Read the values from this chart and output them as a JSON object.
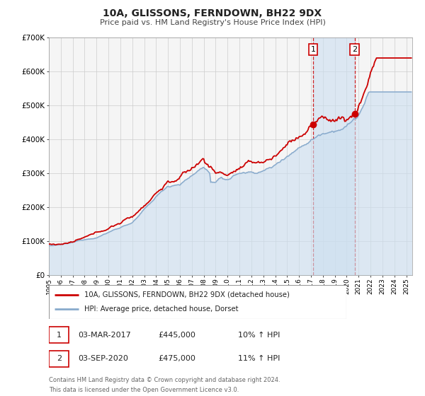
{
  "title": "10A, GLISSONS, FERNDOWN, BH22 9DX",
  "subtitle": "Price paid vs. HM Land Registry's House Price Index (HPI)",
  "ylim": [
    0,
    700000
  ],
  "yticks": [
    0,
    100000,
    200000,
    300000,
    400000,
    500000,
    600000,
    700000
  ],
  "ytick_labels": [
    "£0",
    "£100K",
    "£200K",
    "£300K",
    "£400K",
    "£500K",
    "£600K",
    "£700K"
  ],
  "xlim_start": 1995.0,
  "xlim_end": 2025.5,
  "xtick_years": [
    1995,
    1996,
    1997,
    1998,
    1999,
    2000,
    2001,
    2002,
    2003,
    2004,
    2005,
    2006,
    2007,
    2008,
    2009,
    2010,
    2011,
    2012,
    2013,
    2014,
    2015,
    2016,
    2017,
    2018,
    2019,
    2020,
    2021,
    2022,
    2023,
    2024,
    2025
  ],
  "red_line_color": "#cc0000",
  "blue_line_color": "#88aacc",
  "blue_fill_color": "#ddeeff",
  "grid_color": "#cccccc",
  "bg_color": "#f5f5f5",
  "marker1_x": 2017.17,
  "marker1_y": 445000,
  "marker2_x": 2020.67,
  "marker2_y": 475000,
  "vline1_x": 2017.17,
  "vline2_x": 2020.67,
  "legend_label1": "10A, GLISSONS, FERNDOWN, BH22 9DX (detached house)",
  "legend_label2": "HPI: Average price, detached house, Dorset",
  "table_row1": [
    "1",
    "03-MAR-2017",
    "£445,000",
    "10% ↑ HPI"
  ],
  "table_row2": [
    "2",
    "03-SEP-2020",
    "£475,000",
    "11% ↑ HPI"
  ],
  "footer1": "Contains HM Land Registry data © Crown copyright and database right 2024.",
  "footer2": "This data is licensed under the Open Government Licence v3.0."
}
